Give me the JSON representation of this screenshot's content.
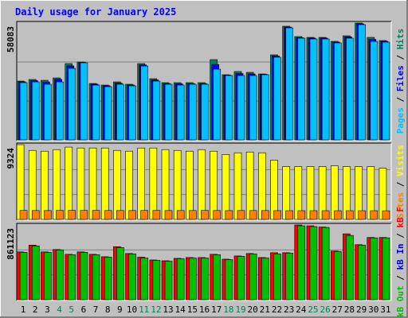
{
  "title": "Daily usage for January 2025",
  "categories": [
    "1",
    "2",
    "3",
    "4",
    "5",
    "6",
    "7",
    "8",
    "9",
    "10",
    "11",
    "12",
    "13",
    "14",
    "15",
    "16",
    "17",
    "18",
    "19",
    "20",
    "21",
    "22",
    "23",
    "24",
    "25",
    "26",
    "27",
    "28",
    "29",
    "30",
    "31"
  ],
  "weekend_indices": [
    3,
    4,
    10,
    11,
    17,
    18,
    24,
    25
  ],
  "weekend_color": "#00805c",
  "legend_separator": " / ",
  "chart_data": [
    {
      "type": "bar",
      "ylim": [
        0,
        58083
      ],
      "yticks": [
        58083
      ],
      "grid_divisions": 3,
      "series": [
        {
          "name": "Hits",
          "color": "#00805c",
          "values": [
            29240,
            30030,
            29630,
            30820,
            37930,
            38720,
            28050,
            27260,
            28840,
            27660,
            37930,
            30420,
            28450,
            28450,
            28450,
            28450,
            39910,
            32400,
            33980,
            33580,
            32790,
            42280,
            56500,
            51360,
            50970,
            50970,
            48990,
            51760,
            58083,
            50970,
            49390
          ]
        },
        {
          "name": "Files",
          "color": "#0000ff",
          "values": [
            28900,
            29500,
            28800,
            30100,
            36800,
            38500,
            27700,
            26900,
            28200,
            27300,
            37300,
            29800,
            28000,
            27900,
            28000,
            28000,
            37500,
            32200,
            33000,
            32800,
            32600,
            41700,
            56100,
            50900,
            50600,
            50600,
            48600,
            51200,
            57700,
            50000,
            49000
          ]
        },
        {
          "name": "Pages",
          "color": "#00c0ff",
          "values": [
            28450,
            28840,
            27660,
            28840,
            35560,
            38330,
            27260,
            26470,
            27660,
            26870,
            36740,
            29240,
            27660,
            27260,
            27660,
            27660,
            35160,
            32000,
            32000,
            32000,
            32400,
            41090,
            55710,
            50570,
            50180,
            50180,
            48200,
            50570,
            57290,
            48990,
            48600
          ]
        }
      ]
    },
    {
      "type": "bar",
      "ylim": [
        0,
        9324
      ],
      "yticks": [
        9324
      ],
      "grid_divisions": 3,
      "series": [
        {
          "name": "Visits",
          "color": "#ffff00",
          "values": [
            9324,
            8610,
            8510,
            8710,
            9020,
            8910,
            8910,
            8910,
            8610,
            8510,
            8910,
            8910,
            8710,
            8610,
            8510,
            8710,
            8510,
            8100,
            8310,
            8410,
            8310,
            7400,
            6590,
            6590,
            6590,
            6590,
            6690,
            6590,
            6590,
            6590,
            6380
          ]
        },
        {
          "name": "Sites",
          "color": "#ff8000",
          "values": [
            1120,
            1110,
            1110,
            1120,
            1130,
            1120,
            1120,
            1110,
            1110,
            1110,
            1120,
            1120,
            1110,
            1110,
            1110,
            1120,
            1110,
            1100,
            1110,
            1110,
            1110,
            1100,
            1090,
            1090,
            1090,
            1090,
            1090,
            1090,
            1090,
            1090,
            1080
          ]
        }
      ]
    },
    {
      "type": "bar",
      "ylim": [
        0,
        861123
      ],
      "yticks": [
        861123
      ],
      "grid_divisions": 3,
      "series": [
        {
          "name": "kB F",
          "color": "#ff0000",
          "values": [
            551000,
            629600,
            551000,
            578700,
            523100,
            551000,
            523100,
            495300,
            611100,
            532400,
            490700,
            458300,
            449000,
            476800,
            486100,
            486100,
            523100,
            467500,
            504600,
            532400,
            486100,
            541700,
            541700,
            861123,
            851800,
            838000,
            560800,
            759240,
            634200,
            717500,
            717500
          ]
        },
        {
          "name": "kB In",
          "color": "#0000ff",
          "values": [
            0,
            0,
            0,
            0,
            0,
            0,
            0,
            0,
            0,
            0,
            0,
            0,
            0,
            0,
            0,
            0,
            0,
            0,
            0,
            0,
            0,
            0,
            0,
            0,
            0,
            0,
            0,
            0,
            0,
            0,
            0
          ]
        },
        {
          "name": "kB Out",
          "color": "#00c000",
          "values": [
            546300,
            620350,
            546300,
            574060,
            518500,
            546300,
            518500,
            490730,
            601840,
            527760,
            481470,
            453690,
            444430,
            472210,
            481470,
            481470,
            518500,
            462950,
            499990,
            527760,
            481470,
            527760,
            537020,
            851830,
            842570,
            833310,
            555540,
            740720,
            629610,
            712940,
            712940
          ]
        }
      ]
    }
  ]
}
